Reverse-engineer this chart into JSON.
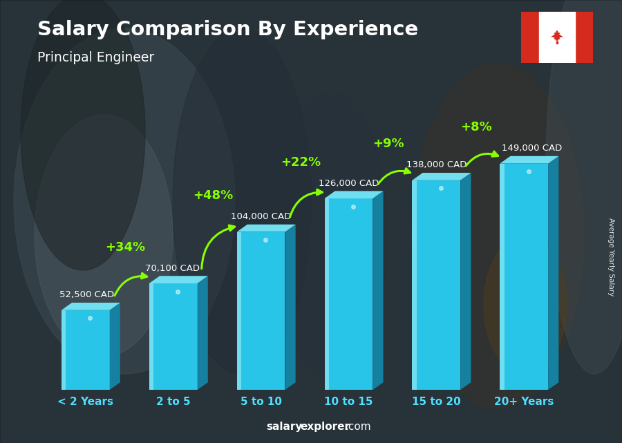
{
  "title": "Salary Comparison By Experience",
  "subtitle": "Principal Engineer",
  "categories": [
    "< 2 Years",
    "2 to 5",
    "5 to 10",
    "10 to 15",
    "15 to 20",
    "20+ Years"
  ],
  "values": [
    52500,
    70100,
    104000,
    126000,
    138000,
    149000
  ],
  "labels": [
    "52,500 CAD",
    "70,100 CAD",
    "104,000 CAD",
    "126,000 CAD",
    "138,000 CAD",
    "149,000 CAD"
  ],
  "pct_changes": [
    "+34%",
    "+48%",
    "+22%",
    "+9%",
    "+8%"
  ],
  "bar_front": "#29c5e8",
  "bar_side": "#1580a0",
  "bar_top": "#72dff0",
  "bar_highlight": "#a0eef8",
  "bar_shadow": "#0d4a6a",
  "pct_color": "#88ff00",
  "label_color": "#ffffff",
  "xtick_color": "#50e0ff",
  "title_color": "#ffffff",
  "subtitle_color": "#ffffff",
  "footer_bold_color": "#ffffff",
  "footer_reg_color": "#ffffff",
  "side_label": "Average Yearly Salary",
  "footer_bold": "salary",
  "footer_bold2": "explorer",
  "footer_reg": ".com",
  "ylim_max": 175000,
  "bg_base": "#3a4a55",
  "bg_mid": "#4a5a65",
  "bg_light": "#5a6a75"
}
